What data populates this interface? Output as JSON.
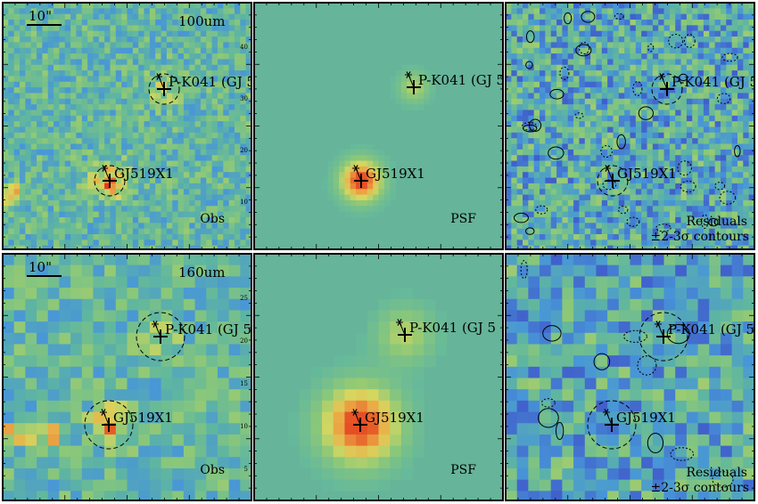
{
  "rows": [
    {
      "band": "100um",
      "scalebar": "10\"",
      "panels": [
        {
          "kind": "obs",
          "corner_label": "Obs"
        },
        {
          "kind": "psf",
          "corner_label": "PSF"
        },
        {
          "kind": "res",
          "corner_label": "Residuals",
          "corner_label2": "±2-3σ contours"
        }
      ]
    },
    {
      "band": "160um",
      "scalebar": "10\"",
      "panels": [
        {
          "kind": "obs",
          "corner_label": "Obs"
        },
        {
          "kind": "psf",
          "corner_label": "PSF"
        },
        {
          "kind": "res",
          "corner_label": "Residuals",
          "corner_label2": "±2-3σ contours"
        }
      ]
    }
  ],
  "sources": [
    {
      "name": "GJ519X1"
    },
    {
      "name": "P-K041 (GJ 5"
    }
  ],
  "axis_ticks_row1": [
    "40",
    "30",
    "20",
    "10"
  ],
  "axis_ticks_row2": [
    "25",
    "20",
    "15",
    "10",
    "5"
  ],
  "colors": {
    "psf_background": "#66b49a",
    "frame": "#000000",
    "peak": "#e02020"
  }
}
